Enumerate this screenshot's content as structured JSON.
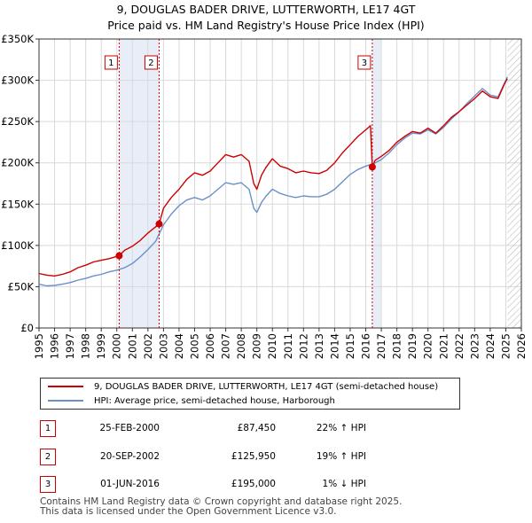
{
  "title": {
    "line1": "9, DOUGLAS BADER DRIVE, LUTTERWORTH, LE17 4GT",
    "line2": "Price paid vs. HM Land Registry's House Price Index (HPI)"
  },
  "colors": {
    "price_line": "#cc0000",
    "hpi_line": "#6b8fc8",
    "shade": "#e8eef8",
    "grid": "#d9d9d9",
    "marker": "#cc0000"
  },
  "chart_data": {
    "type": "line",
    "xlim": [
      1995,
      2026
    ],
    "ylim": [
      0,
      350000
    ],
    "x_ticks": [
      "1995",
      "1996",
      "1997",
      "1998",
      "1999",
      "2000",
      "2001",
      "2002",
      "2003",
      "2004",
      "2005",
      "2006",
      "2007",
      "2008",
      "2009",
      "2010",
      "2011",
      "2012",
      "2013",
      "2014",
      "2015",
      "2016",
      "2017",
      "2018",
      "2019",
      "2020",
      "2021",
      "2022",
      "2023",
      "2024",
      "2025",
      "2026"
    ],
    "y_ticks": [
      {
        "value": 0,
        "label": "£0"
      },
      {
        "value": 50000,
        "label": "£50K"
      },
      {
        "value": 100000,
        "label": "£100K"
      },
      {
        "value": 150000,
        "label": "£150K"
      },
      {
        "value": 200000,
        "label": "£200K"
      },
      {
        "value": 250000,
        "label": "£250K"
      },
      {
        "value": 300000,
        "label": "£300K"
      },
      {
        "value": 350000,
        "label": "£350K"
      }
    ],
    "grid": true,
    "series": [
      {
        "name": "9, DOUGLAS BADER DRIVE, LUTTERWORTH, LE17 4GT (semi-detached house)",
        "color": "#cc0000",
        "x": [
          1995.0,
          1995.5,
          1996.0,
          1996.5,
          1997.0,
          1997.5,
          1998.0,
          1998.5,
          1999.0,
          1999.5,
          2000.15,
          2000.5,
          2001.0,
          2001.5,
          2002.0,
          2002.72,
          2003.0,
          2003.5,
          2004.0,
          2004.5,
          2005.0,
          2005.5,
          2006.0,
          2006.5,
          2007.0,
          2007.5,
          2008.0,
          2008.5,
          2008.8,
          2009.0,
          2009.3,
          2009.6,
          2010.0,
          2010.5,
          2011.0,
          2011.5,
          2012.0,
          2012.5,
          2013.0,
          2013.5,
          2014.0,
          2014.5,
          2015.0,
          2015.5,
          2016.0,
          2016.3,
          2016.42,
          2016.6,
          2017.0,
          2017.5,
          2018.0,
          2018.5,
          2019.0,
          2019.5,
          2020.0,
          2020.5,
          2021.0,
          2021.5,
          2022.0,
          2022.5,
          2023.0,
          2023.5,
          2024.0,
          2024.5,
          2024.9,
          2025.1
        ],
        "values": [
          66000,
          64000,
          63000,
          65000,
          68000,
          73000,
          76000,
          80000,
          82000,
          84000,
          87450,
          94000,
          99000,
          106000,
          115000,
          125950,
          145000,
          158000,
          168000,
          180000,
          188000,
          185000,
          190000,
          200000,
          210000,
          207000,
          210000,
          202000,
          175000,
          168000,
          185000,
          195000,
          205000,
          196000,
          193000,
          188000,
          190000,
          188000,
          187000,
          191000,
          200000,
          212000,
          222000,
          232000,
          240000,
          245000,
          195000,
          203000,
          208000,
          215000,
          225000,
          232000,
          238000,
          236000,
          242000,
          236000,
          245000,
          255000,
          262000,
          270000,
          278000,
          287000,
          280000,
          278000,
          295000,
          302000
        ]
      },
      {
        "name": "HPI: Average price, semi-detached house, Harborough",
        "color": "#6b8fc8",
        "x": [
          1995.0,
          1995.5,
          1996.0,
          1996.5,
          1997.0,
          1997.5,
          1998.0,
          1998.5,
          1999.0,
          1999.5,
          2000.0,
          2000.5,
          2001.0,
          2001.5,
          2002.0,
          2002.5,
          2003.0,
          2003.5,
          2004.0,
          2004.5,
          2005.0,
          2005.5,
          2006.0,
          2006.5,
          2007.0,
          2007.5,
          2008.0,
          2008.5,
          2008.8,
          2009.0,
          2009.3,
          2009.6,
          2010.0,
          2010.5,
          2011.0,
          2011.5,
          2012.0,
          2012.5,
          2013.0,
          2013.5,
          2014.0,
          2014.5,
          2015.0,
          2015.5,
          2016.0,
          2016.5,
          2017.0,
          2017.5,
          2018.0,
          2018.5,
          2019.0,
          2019.5,
          2020.0,
          2020.5,
          2021.0,
          2021.5,
          2022.0,
          2022.5,
          2023.0,
          2023.5,
          2024.0,
          2024.5,
          2024.9,
          2025.1
        ],
        "values": [
          53000,
          51000,
          51500,
          53000,
          55000,
          58000,
          60000,
          63000,
          65000,
          68000,
          70000,
          73000,
          78000,
          86000,
          95000,
          105000,
          125000,
          138000,
          148000,
          155000,
          158000,
          155000,
          160000,
          168000,
          176000,
          174000,
          176000,
          168000,
          145000,
          140000,
          152000,
          160000,
          168000,
          163000,
          160000,
          158000,
          160000,
          159000,
          159000,
          162000,
          168000,
          177000,
          186000,
          192000,
          196000,
          199000,
          204000,
          212000,
          222000,
          230000,
          236000,
          235000,
          240000,
          235000,
          243000,
          253000,
          262000,
          272000,
          281000,
          290000,
          282000,
          280000,
          296000,
          304000
        ]
      }
    ],
    "sales": [
      {
        "id": "1",
        "x": 2000.15,
        "price": 87450
      },
      {
        "id": "2",
        "x": 2002.72,
        "price": 125950
      },
      {
        "id": "3",
        "x": 2016.42,
        "price": 195000
      }
    ],
    "shaded_ranges": [
      [
        2000.15,
        2002.72
      ],
      [
        2016.42,
        2017.0
      ]
    ]
  },
  "legend": {
    "price_label": "9, DOUGLAS BADER DRIVE, LUTTERWORTH, LE17 4GT (semi-detached house)",
    "hpi_label": "HPI: Average price, semi-detached house, Harborough"
  },
  "transactions": [
    {
      "num": "1",
      "date": "25-FEB-2000",
      "price": "£87,450",
      "hpi": "22% ↑ HPI"
    },
    {
      "num": "2",
      "date": "20-SEP-2002",
      "price": "£125,950",
      "hpi": "19% ↑ HPI"
    },
    {
      "num": "3",
      "date": "01-JUN-2016",
      "price": "£195,000",
      "hpi": "1% ↓ HPI"
    }
  ],
  "footer": {
    "line1": "Contains HM Land Registry data © Crown copyright and database right 2025.",
    "line2": "This data is licensed under the Open Government Licence v3.0."
  }
}
